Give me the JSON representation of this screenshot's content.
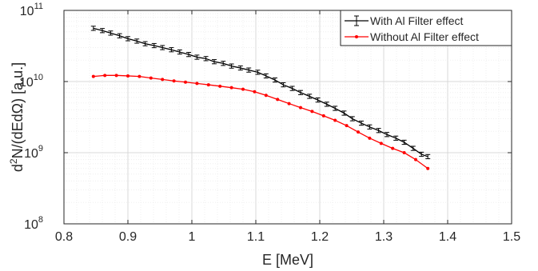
{
  "chart_data": {
    "type": "line",
    "xlabel": "E [MeV]",
    "ylabel_main": "d",
    "ylabel_sup": "2",
    "ylabel_rest": "N/(dEdΩ) [a.u.]",
    "xlim": [
      0.8,
      1.5
    ],
    "ylim": [
      100000000.0,
      100000000000.0
    ],
    "yscale": "log",
    "grid": "on (major and minor, light)",
    "legend_position": "top-right",
    "x_ticks": [
      "0.8",
      "0.9",
      "1",
      "1.1",
      "1.2",
      "1.3",
      "1.4",
      "1.5"
    ],
    "y_ticks": [
      {
        "base": "10",
        "exp": "8"
      },
      {
        "base": "10",
        "exp": "9"
      },
      {
        "base": "10",
        "exp": "10"
      },
      {
        "base": "10",
        "exp": "11"
      }
    ],
    "series": [
      {
        "name": "With Al Filter effect",
        "color": "#000000",
        "marker": "errorbar",
        "x": [
          0.846,
          0.86,
          0.873,
          0.887,
          0.9,
          0.914,
          0.927,
          0.941,
          0.954,
          0.968,
          0.981,
          0.995,
          1.008,
          1.022,
          1.035,
          1.049,
          1.062,
          1.076,
          1.089,
          1.103,
          1.116,
          1.13,
          1.143,
          1.157,
          1.17,
          1.184,
          1.197,
          1.211,
          1.224,
          1.238,
          1.251,
          1.265,
          1.278,
          1.292,
          1.305,
          1.319,
          1.332,
          1.346,
          1.359,
          1.369
        ],
        "y": [
          56000000000.0,
          52000000000.0,
          48000000000.0,
          44000000000.0,
          40000000000.0,
          37000000000.0,
          34000000000.0,
          32000000000.0,
          30000000000.0,
          28000000000.0,
          26000000000.0,
          24000000000.0,
          22000000000.0,
          21000000000.0,
          19000000000.0,
          18000000000.0,
          16500000000.0,
          15500000000.0,
          14500000000.0,
          13500000000.0,
          12000000000.0,
          10500000000.0,
          9000000000.0,
          8000000000.0,
          7000000000.0,
          6200000000.0,
          5500000000.0,
          4800000000.0,
          4200000000.0,
          3600000000.0,
          3000000000.0,
          2600000000.0,
          2300000000.0,
          2050000000.0,
          1800000000.0,
          1600000000.0,
          1400000000.0,
          1150000000.0,
          950000000.0,
          880000000.0
        ]
      },
      {
        "name": "Without Al Filter effect",
        "color": "#ff0000",
        "marker": "dot",
        "x": [
          0.846,
          0.864,
          0.882,
          0.9,
          0.918,
          0.936,
          0.954,
          0.972,
          0.99,
          1.008,
          1.026,
          1.044,
          1.062,
          1.08,
          1.098,
          1.116,
          1.134,
          1.152,
          1.17,
          1.188,
          1.206,
          1.224,
          1.242,
          1.26,
          1.278,
          1.296,
          1.314,
          1.332,
          1.35,
          1.369
        ],
        "y": [
          11800000000.0,
          12200000000.0,
          12200000000.0,
          12000000000.0,
          11800000000.0,
          11200000000.0,
          10700000000.0,
          10200000000.0,
          9800000000.0,
          9400000000.0,
          9000000000.0,
          8600000000.0,
          8200000000.0,
          7800000000.0,
          7200000000.0,
          6400000000.0,
          5600000000.0,
          4900000000.0,
          4300000000.0,
          3800000000.0,
          3300000000.0,
          2850000000.0,
          2400000000.0,
          1950000000.0,
          1600000000.0,
          1350000000.0,
          1150000000.0,
          1000000000.0,
          800000000.0,
          600000000.0
        ]
      }
    ]
  }
}
